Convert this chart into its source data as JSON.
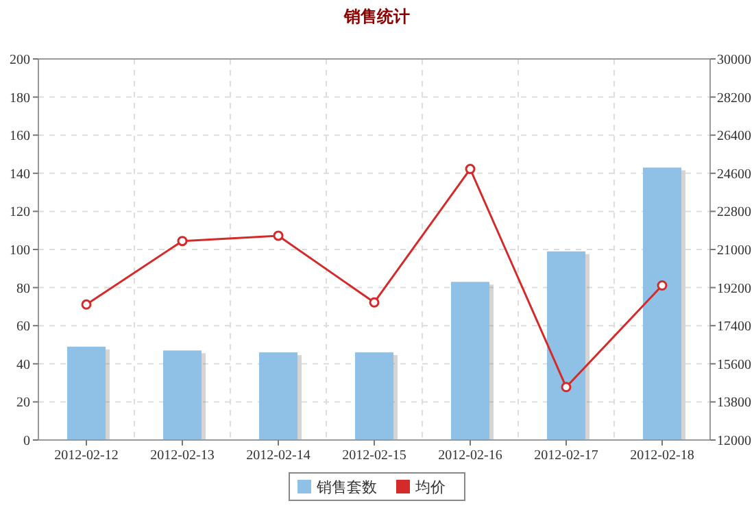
{
  "chart_data": {
    "type": "bar",
    "title": "销售统计",
    "categories": [
      "2012-02-12",
      "2012-02-13",
      "2012-02-14",
      "2012-02-15",
      "2012-02-16",
      "2012-02-17",
      "2012-02-18"
    ],
    "series": [
      {
        "name": "销售套数",
        "color": "#8fc1e6",
        "values": [
          49,
          47,
          46,
          46,
          83,
          99,
          143
        ]
      },
      {
        "name": "均价",
        "type": "line",
        "axis": "y2",
        "color": "#d42a2a",
        "marker": "circle",
        "values": [
          18400,
          21400,
          21650,
          18500,
          24800,
          14500,
          19300
        ]
      }
    ],
    "ylim": [
      0,
      200
    ],
    "yticks": [
      0,
      20,
      40,
      60,
      80,
      100,
      120,
      140,
      160,
      180,
      200
    ],
    "y2lim": [
      12000,
      30000
    ],
    "y2ticks": [
      12000,
      13800,
      15600,
      17400,
      19200,
      21000,
      22800,
      24600,
      26400,
      28200,
      30000
    ],
    "grid": true,
    "legend": "bottom"
  }
}
